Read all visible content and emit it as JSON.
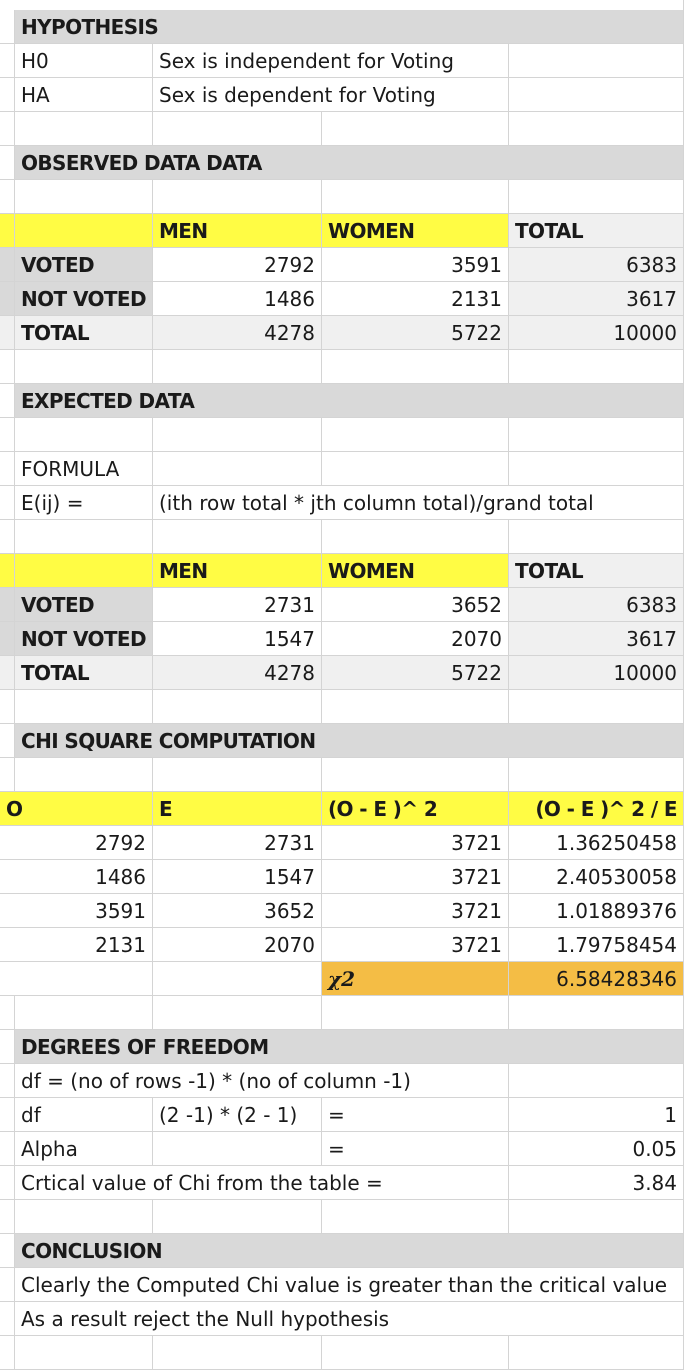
{
  "hypothesis": {
    "header": "HYPOTHESIS",
    "h0_label": "H0",
    "h0_text": "Sex is independent for Voting",
    "ha_label": "HA",
    "ha_text": "Sex is dependent for Voting"
  },
  "observed": {
    "header": "OBSERVED DATA DATA",
    "columns": [
      "MEN",
      "WOMEN",
      "TOTAL"
    ],
    "rows": [
      {
        "label": "VOTED",
        "men": "2792",
        "women": "3591",
        "total": "6383"
      },
      {
        "label": "NOT VOTED",
        "men": "1486",
        "women": "2131",
        "total": "3617"
      },
      {
        "label": "TOTAL",
        "men": "4278",
        "women": "5722",
        "total": "10000"
      }
    ]
  },
  "expected": {
    "header": "EXPECTED DATA",
    "formula_label": "FORMULA",
    "eij_label": "E(ij) =",
    "formula_text": "(ith row total * jth column total)/grand total",
    "columns": [
      "MEN",
      "WOMEN",
      "TOTAL"
    ],
    "rows": [
      {
        "label": "VOTED",
        "men": "2731",
        "women": "3652",
        "total": "6383"
      },
      {
        "label": "NOT VOTED",
        "men": "1547",
        "women": "2070",
        "total": "3617"
      },
      {
        "label": "TOTAL",
        "men": "4278",
        "women": "5722",
        "total": "10000"
      }
    ]
  },
  "chi": {
    "header": "CHI SQUARE COMPUTATION",
    "columns": [
      "O",
      "E",
      "(O - E )^ 2",
      "(O - E )^ 2 / E"
    ],
    "rows": [
      {
        "o": "2792",
        "e": "2731",
        "sq": "3721",
        "ratio": "1.36250458"
      },
      {
        "o": "1486",
        "e": "1547",
        "sq": "3721",
        "ratio": "2.40530058"
      },
      {
        "o": "3591",
        "e": "3652",
        "sq": "3721",
        "ratio": "1.01889376"
      },
      {
        "o": "2131",
        "e": "2070",
        "sq": "3721",
        "ratio": "1.79758454"
      }
    ],
    "chi2_symbol": "χ2",
    "chi2_value": "6.58428346"
  },
  "dof": {
    "header": "DEGREES OF FREEDOM",
    "formula": "df = (no of rows -1) * (no of column -1)",
    "df_label": "df",
    "df_expr": "(2 -1) * (2 - 1)",
    "eq1": "=",
    "df_value": "1",
    "alpha_label": "Alpha",
    "eq2": "=",
    "alpha_value": "0.05",
    "critical_label": "Crtical value of Chi from the table =",
    "critical_value": "3.84"
  },
  "conclusion": {
    "header": "CONCLUSION",
    "line1": "Clearly the Computed Chi value is greater than the critical value",
    "line2": "As a result reject the Null hypothesis"
  },
  "colors": {
    "section_gray": "#d9d9d9",
    "row_light": "#f0f0f0",
    "header_yellow": "#fffc44",
    "result_orange": "#f4bd45",
    "gridline": "#d4d4d4"
  }
}
